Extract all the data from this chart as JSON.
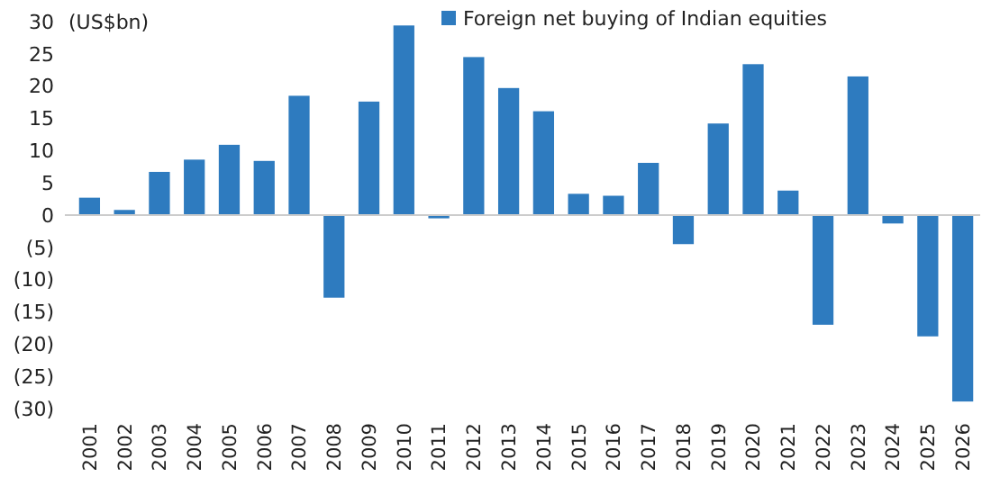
{
  "chart_data": {
    "type": "bar",
    "ylabel": "(US$bn)",
    "categories": [
      "2001",
      "2002",
      "2003",
      "2004",
      "2005",
      "2006",
      "2007",
      "2008",
      "2009",
      "2010",
      "2011",
      "2012",
      "2013",
      "2014",
      "2015",
      "2016",
      "2017",
      "2018",
      "2019",
      "2020",
      "2021",
      "2022",
      "2023",
      "2024",
      "2025",
      "2026"
    ],
    "series": [
      {
        "name": "Foreign net buying of Indian equities",
        "color": "#2e7bbf",
        "values": [
          2.7,
          0.8,
          6.7,
          8.6,
          10.9,
          8.4,
          18.5,
          -12.8,
          17.6,
          29.4,
          -0.5,
          24.5,
          19.7,
          16.1,
          3.3,
          3.0,
          8.1,
          -4.5,
          14.2,
          23.4,
          3.8,
          -17,
          21.5,
          -1.3,
          -18.8,
          -28.9
        ]
      }
    ],
    "ylim": [
      -30,
      30
    ],
    "yticks": [
      {
        "value": -30,
        "label": "(30)"
      },
      {
        "value": -25,
        "label": "(25)"
      },
      {
        "value": -20,
        "label": "(20)"
      },
      {
        "value": -15,
        "label": "(15)"
      },
      {
        "value": -10,
        "label": "(10)"
      },
      {
        "value": -5,
        "label": "(5)"
      },
      0,
      5,
      10,
      15,
      20,
      25,
      30
    ],
    "legend": "top"
  }
}
